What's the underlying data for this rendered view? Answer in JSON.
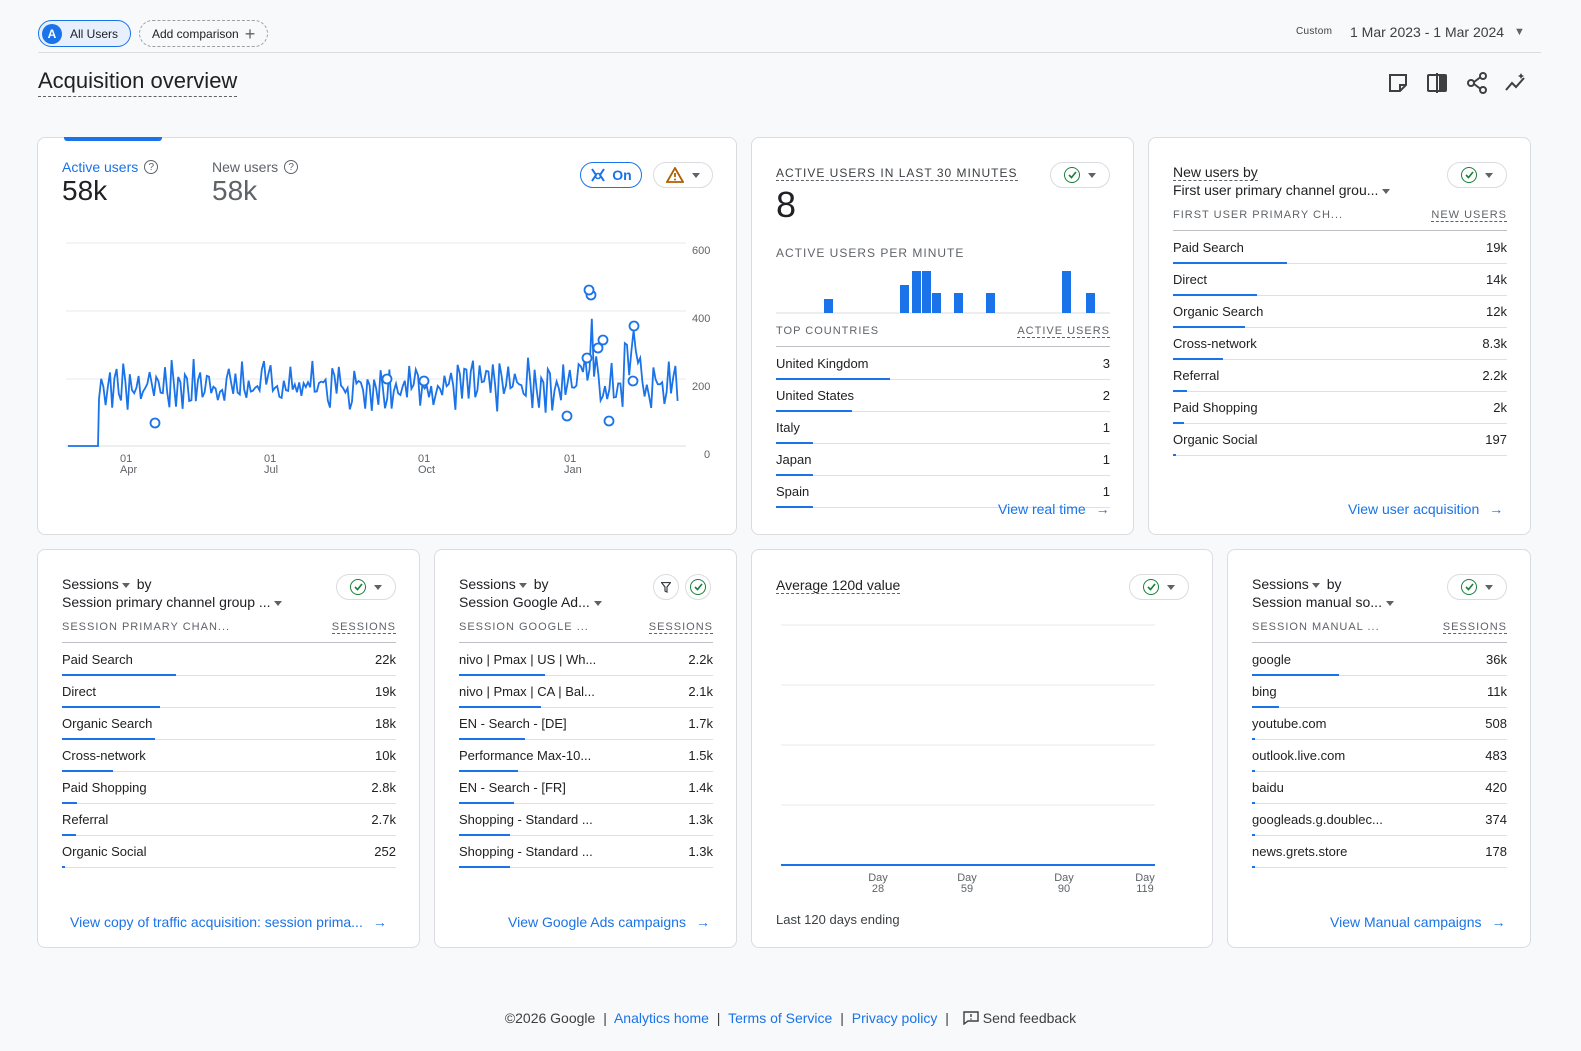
{
  "top": {
    "comparison_chip": "All Users",
    "comparison_avatar": "A",
    "add_comparison": "Add comparison",
    "date_custom": "Custom",
    "date_range": "1 Mar 2023 - 1 Mar 2024",
    "page_title": "Acquisition overview"
  },
  "main_chart": {
    "metric1_label": "Active users",
    "metric1_value": "58k",
    "metric2_label": "New users",
    "metric2_value": "58k",
    "toggle_label": "On",
    "y_ticks": [
      "600",
      "400",
      "200",
      "0"
    ],
    "x_ticks": [
      {
        "day": "01",
        "month": "Apr"
      },
      {
        "day": "01",
        "month": "Jul"
      },
      {
        "day": "01",
        "month": "Oct"
      },
      {
        "day": "01",
        "month": "Jan"
      }
    ]
  },
  "realtime": {
    "title": "ACTIVE USERS IN LAST 30 MINUTES",
    "value": "8",
    "per_minute_label": "ACTIVE USERS PER MINUTE",
    "col1": "TOP COUNTRIES",
    "col2": "ACTIVE USERS",
    "rows": [
      {
        "label": "United Kingdom",
        "value": "3",
        "frac": 1.0
      },
      {
        "label": "United States",
        "value": "2",
        "frac": 0.67
      },
      {
        "label": "Italy",
        "value": "1",
        "frac": 0.33
      },
      {
        "label": "Japan",
        "value": "1",
        "frac": 0.33
      },
      {
        "label": "Spain",
        "value": "1",
        "frac": 0.33
      }
    ],
    "link": "View real time"
  },
  "new_users": {
    "title_line1": "New users by",
    "title_line2": "First user primary channel grou...",
    "col1": "FIRST USER PRIMARY CH...",
    "col2": "NEW USERS",
    "rows": [
      {
        "label": "Paid Search",
        "value": "19k",
        "frac": 1.0
      },
      {
        "label": "Direct",
        "value": "14k",
        "frac": 0.74
      },
      {
        "label": "Organic Search",
        "value": "12k",
        "frac": 0.63
      },
      {
        "label": "Cross-network",
        "value": "8.3k",
        "frac": 0.44
      },
      {
        "label": "Referral",
        "value": "2.2k",
        "frac": 0.12
      },
      {
        "label": "Paid Shopping",
        "value": "2k",
        "frac": 0.1
      },
      {
        "label": "Organic Social",
        "value": "197",
        "frac": 0.01
      }
    ],
    "link": "View user acquisition"
  },
  "sessions_channel": {
    "title_line1": "Sessions",
    "title_by": "by",
    "title_line2": "Session primary channel group ...",
    "col1": "SESSION PRIMARY CHAN...",
    "col2": "SESSIONS",
    "rows": [
      {
        "label": "Paid Search",
        "value": "22k",
        "frac": 1.0
      },
      {
        "label": "Direct",
        "value": "19k",
        "frac": 0.86
      },
      {
        "label": "Organic Search",
        "value": "18k",
        "frac": 0.82
      },
      {
        "label": "Cross-network",
        "value": "10k",
        "frac": 0.45
      },
      {
        "label": "Paid Shopping",
        "value": "2.8k",
        "frac": 0.13
      },
      {
        "label": "Referral",
        "value": "2.7k",
        "frac": 0.12
      },
      {
        "label": "Organic Social",
        "value": "252",
        "frac": 0.01
      }
    ],
    "link": "View copy of traffic acquisition: session prima..."
  },
  "sessions_ads": {
    "title_line1": "Sessions",
    "title_by": "by",
    "title_line2": "Session Google Ad...",
    "col1": "SESSION GOOGLE ...",
    "col2": "SESSIONS",
    "rows": [
      {
        "label": "nivo | Pmax | US | Wh...",
        "value": "2.2k",
        "frac": 1.0
      },
      {
        "label": "nivo | Pmax | CA | Bal...",
        "value": "2.1k",
        "frac": 0.95
      },
      {
        "label": "EN - Search - [DE]",
        "value": "1.7k",
        "frac": 0.77
      },
      {
        "label": "Performance Max-10...",
        "value": "1.5k",
        "frac": 0.68
      },
      {
        "label": "EN - Search - [FR]",
        "value": "1.4k",
        "frac": 0.64
      },
      {
        "label": "Shopping - Standard ...",
        "value": "1.3k",
        "frac": 0.59
      },
      {
        "label": "Shopping - Standard ...",
        "value": "1.3k",
        "frac": 0.59
      }
    ],
    "link": "View Google Ads campaigns"
  },
  "avg_value": {
    "title": "Average 120d value",
    "x_ticks": [
      {
        "word": "Day",
        "num": "28"
      },
      {
        "word": "Day",
        "num": "59"
      },
      {
        "word": "Day",
        "num": "90"
      },
      {
        "word": "Day",
        "num": "119"
      }
    ],
    "footnote": "Last 120 days ending"
  },
  "sessions_manual": {
    "title_line1": "Sessions",
    "title_by": "by",
    "title_line2": "Session manual so...",
    "col1": "SESSION MANUAL ...",
    "col2": "SESSIONS",
    "rows": [
      {
        "label": "google",
        "value": "36k",
        "frac": 1.0
      },
      {
        "label": "bing",
        "value": "11k",
        "frac": 0.31
      },
      {
        "label": "youtube.com",
        "value": "508",
        "frac": 0.02
      },
      {
        "label": "outlook.live.com",
        "value": "483",
        "frac": 0.02
      },
      {
        "label": "baidu",
        "value": "420",
        "frac": 0.02
      },
      {
        "label": "googleads.g.doublec...",
        "value": "374",
        "frac": 0.02
      },
      {
        "label": "news.grets.store",
        "value": "178",
        "frac": 0.01
      }
    ],
    "link": "View Manual campaigns"
  },
  "footer": {
    "copyright": "©2026 Google",
    "link1": "Analytics home",
    "link2": "Terms of Service",
    "link3": "Privacy policy",
    "feedback": "Send feedback"
  },
  "colors": {
    "accent": "#1a73e8",
    "check": "#188038",
    "warning": "#b06000"
  }
}
